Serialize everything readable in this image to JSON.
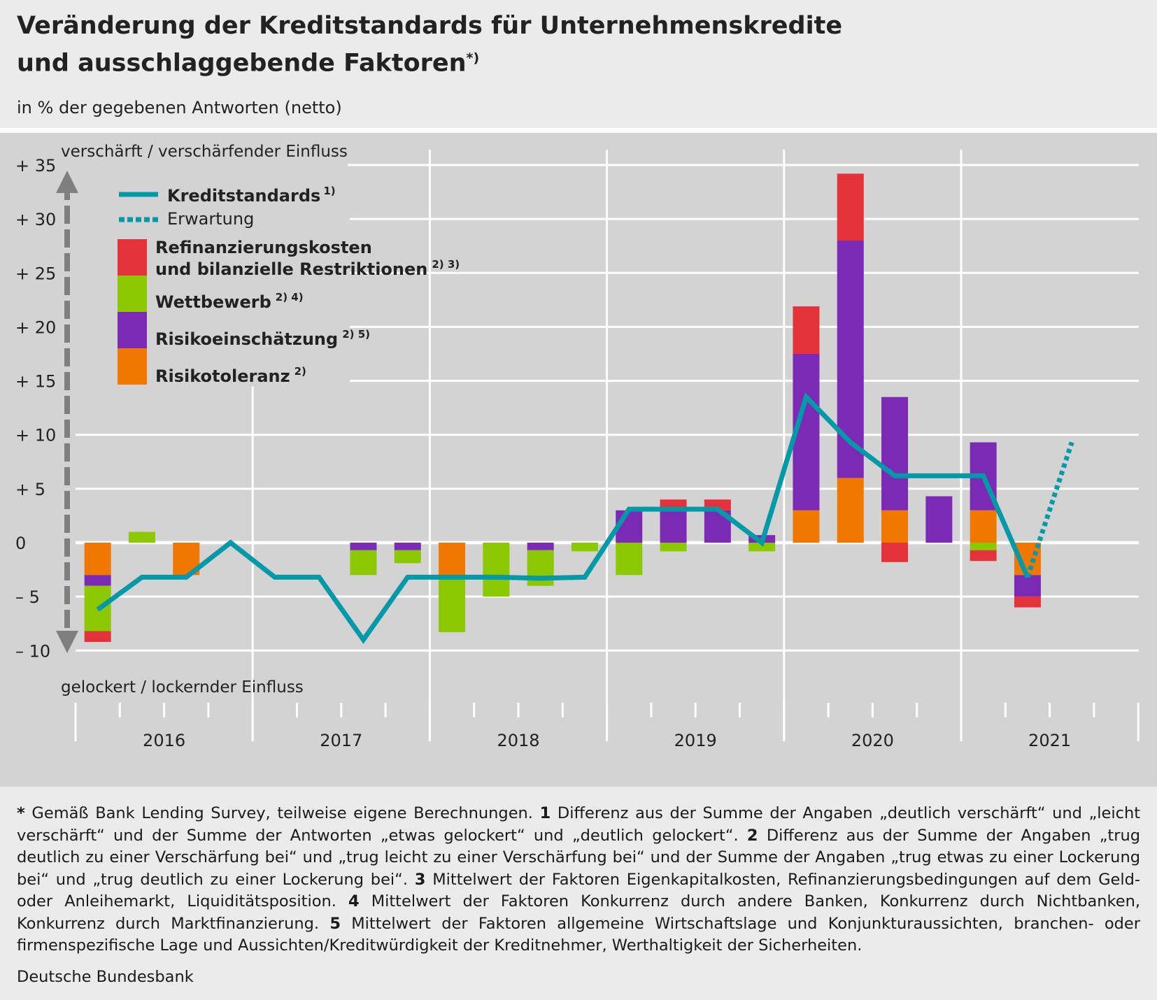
{
  "title": {
    "line1": "Veränderung der Kreditstandards für Unternehmenskredite",
    "line2": "und ausschlaggebende Faktoren",
    "marker": "*)"
  },
  "subtitle": "in % der gegebenen Antworten (netto)",
  "chart_data": {
    "type": "bar",
    "stacked": true,
    "ylim": [
      -10,
      35
    ],
    "y_ticks": [
      35,
      30,
      25,
      20,
      15,
      10,
      5,
      0,
      -5,
      -10
    ],
    "y_tick_labels": [
      "+ 35",
      "+ 30",
      "+ 25",
      "+ 20",
      "+ 15",
      "+ 10",
      "+  5",
      "0",
      "–  5",
      "– 10"
    ],
    "top_label": "verschärft / verschärfender Einfluss",
    "bottom_label": "gelockert / lockernder Einfluss",
    "years": [
      "2016",
      "2017",
      "2018",
      "2019",
      "2020",
      "2021"
    ],
    "quarters_per_year": 4,
    "grid": true,
    "legend": {
      "kredit": {
        "label": "Kreditstandards",
        "sup": "1)"
      },
      "erwartung": {
        "label": "Erwartung",
        "sup": ""
      },
      "refi": {
        "line1": "Refinanzierungskosten",
        "line2": "und bilanzielle Restriktionen",
        "sup": "2) 3)"
      },
      "wett": {
        "label": "Wettbewerb",
        "sup": "2) 4)"
      },
      "risikoein": {
        "label": "Risikoeinschätzung",
        "sup": "2) 5)"
      },
      "risikotol": {
        "label": "Risikotoleranz",
        "sup": "2)"
      }
    },
    "bar_series": [
      {
        "key": "risikotol",
        "color": "#f07800",
        "values": [
          -3,
          0,
          -3,
          0,
          0,
          0,
          0,
          0,
          -3,
          0,
          0,
          0,
          0,
          0,
          0,
          0,
          3,
          6,
          3,
          0,
          3,
          -3,
          null,
          null
        ]
      },
      {
        "key": "risikoein",
        "color": "#7b2ab5",
        "values": [
          -1,
          0,
          0,
          0,
          0,
          0,
          -0.7,
          -0.7,
          0,
          0,
          -0.7,
          0,
          3,
          3,
          3,
          0.7,
          14.5,
          22,
          10.5,
          4.3,
          6.3,
          -2,
          null,
          null
        ]
      },
      {
        "key": "wett",
        "color": "#8cc800",
        "values": [
          -4.2,
          1,
          0,
          0,
          0,
          0,
          -2.3,
          -1.2,
          -5.3,
          -5,
          -3.3,
          -0.8,
          -3,
          -0.8,
          0,
          -0.8,
          0,
          0,
          0,
          0,
          -0.7,
          0,
          null,
          null
        ]
      },
      {
        "key": "refi",
        "color": "#e4323a",
        "values": [
          -1,
          0,
          0,
          0,
          0,
          0,
          0,
          0,
          0,
          0,
          0,
          0,
          0,
          1,
          1,
          0,
          4.4,
          6.2,
          -1.8,
          0,
          -1,
          -1,
          null,
          null
        ]
      }
    ],
    "line_series": {
      "name": "Kreditstandards",
      "color": "#0099a8",
      "values": [
        -6.2,
        -3.2,
        -3.2,
        0,
        -3.2,
        -3.2,
        -9,
        -3.2,
        -3.2,
        -3.2,
        -3.3,
        -3.2,
        3.1,
        3.1,
        3.1,
        0,
        13.5,
        9.3,
        6.2,
        6.2,
        6.2,
        -3.2
      ]
    },
    "expectation_series": {
      "name": "Erwartung",
      "color": "#0099a8",
      "values": [
        null,
        null,
        null,
        null,
        null,
        null,
        null,
        null,
        null,
        null,
        null,
        null,
        null,
        null,
        null,
        null,
        null,
        null,
        null,
        null,
        null,
        -3.2,
        9.3,
        null
      ]
    }
  },
  "footnotes": {
    "star": "*",
    "star_text": "Gemäß Bank Lending Survey, teilweise eigene Berechnungen.",
    "n1": "1",
    "t1": "Differenz aus der Summe der Angaben „deutlich verschärft“ und „leicht verschärft“ und der Summe der Antworten „etwas gelockert“ und „deutlich gelockert“.",
    "n2": "2",
    "t2": "Differenz aus der Summe der Angaben „trug deutlich zu einer Verschärfung bei“ und „trug leicht zu einer Verschärfung bei“ und der Summe der Angaben „trug etwas zu einer Lockerung bei“ und „trug deutlich zu einer Lockerung bei“.",
    "n3": "3",
    "t3": "Mittelwert der Faktoren Eigenkapitalkosten, Refinanzierungsbedingungen auf dem Geld- oder Anleihemarkt, Liquiditätsposition.",
    "n4": "4",
    "t4": "Mittelwert der Faktoren Konkurrenz durch andere Banken, Konkurrenz durch Nichtbanken, Konkurrenz durch Marktfinanzierung.",
    "n5": "5",
    "t5": "Mittelwert der Faktoren allgemeine Wirtschaftslage und Konjunkturaussichten, branchen- oder firmenspezifische Lage und Aussichten/Kreditwürdigkeit der Kreditnehmer, Werthaltigkeit der Sicherheiten."
  },
  "source": "Deutsche Bundesbank"
}
